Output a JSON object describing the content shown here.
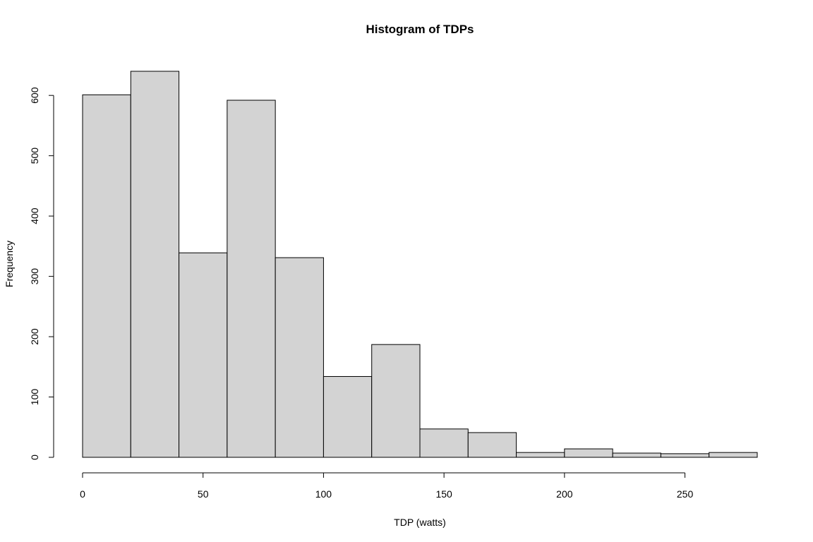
{
  "chart_data": {
    "type": "bar",
    "title": "Histogram of TDPs",
    "xlabel": "TDP (watts)",
    "ylabel": "Frequency",
    "bin_edges": [
      0,
      20,
      40,
      60,
      80,
      100,
      120,
      140,
      160,
      180,
      200,
      220,
      240,
      260,
      280
    ],
    "values": [
      601,
      640,
      339,
      592,
      331,
      134,
      187,
      47,
      41,
      8,
      14,
      7,
      6,
      8
    ],
    "xlim": [
      0,
      280
    ],
    "ylim": [
      0,
      640
    ],
    "x_ticks": [
      0,
      50,
      100,
      150,
      200,
      250
    ],
    "x_tick_labels": [
      "0",
      "50",
      "100",
      "150",
      "200",
      "250"
    ],
    "y_ticks": [
      0,
      100,
      200,
      300,
      400,
      500,
      600
    ],
    "y_tick_labels": [
      "0",
      "100",
      "200",
      "300",
      "400",
      "500",
      "600"
    ],
    "bar_color": "#d3d3d3",
    "grid": false,
    "legend": "none"
  }
}
